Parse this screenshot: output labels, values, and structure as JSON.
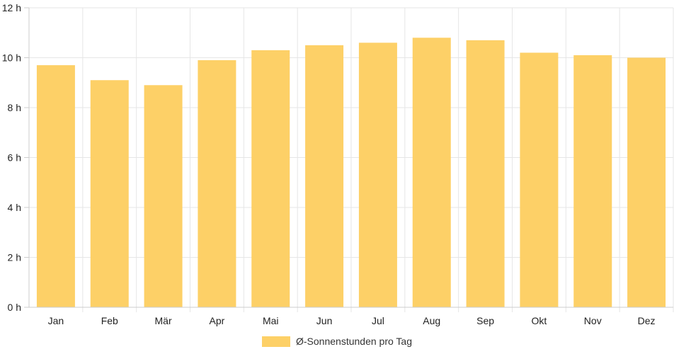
{
  "chart_data": {
    "type": "bar",
    "categories": [
      "Jan",
      "Feb",
      "Mär",
      "Apr",
      "Mai",
      "Jun",
      "Jul",
      "Aug",
      "Sep",
      "Okt",
      "Nov",
      "Dez"
    ],
    "series": [
      {
        "name": "Ø-Sonnenstunden pro Tag",
        "values": [
          9.7,
          9.1,
          8.9,
          9.9,
          10.3,
          10.5,
          10.6,
          10.8,
          10.7,
          10.2,
          10.1,
          10.0
        ],
        "color": "#fdd067"
      }
    ],
    "y_ticks": [
      "0 h",
      "2 h",
      "4 h",
      "6 h",
      "8 h",
      "10 h",
      "12 h"
    ],
    "ylim": [
      0,
      12
    ],
    "grid": true,
    "legend_position": "bottom-center",
    "colors": {
      "grid": "#e6e6e6",
      "axis": "#cccccc"
    }
  }
}
